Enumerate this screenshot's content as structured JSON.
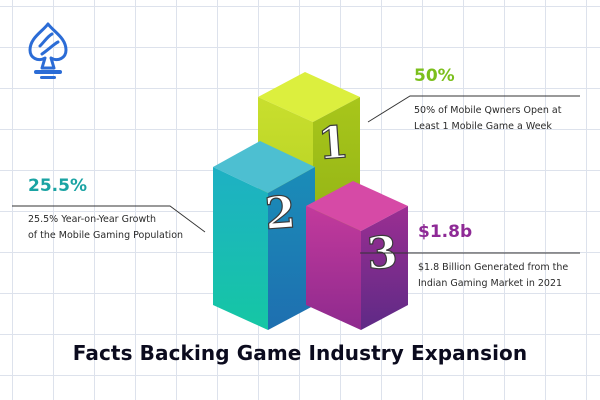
{
  "colors": {
    "green_stat": "#7bbf1c",
    "teal_stat": "#1aa3a3",
    "purple_stat": "#8e2a96",
    "title": "#0b0b1e",
    "logo": "#2b6cd6"
  },
  "logo": {
    "icon": "spade-shield-logo-icon"
  },
  "facts": [
    {
      "rank": "1",
      "stat": "50%",
      "line1": "50% of Mobile Qwners Open at",
      "line2": "Least 1 Mobile Game a Week"
    },
    {
      "rank": "2",
      "stat": "25.5%",
      "line1": "25.5% Year-on-Year Growth",
      "line2": "of the Mobile Gaming Population"
    },
    {
      "rank": "3",
      "stat": "$1.8b",
      "line1": "$1.8 Billion Generated from the",
      "line2": "Indian Gaming Market in 2021"
    }
  ],
  "title": "Facts Backing Game Industry Expansion"
}
